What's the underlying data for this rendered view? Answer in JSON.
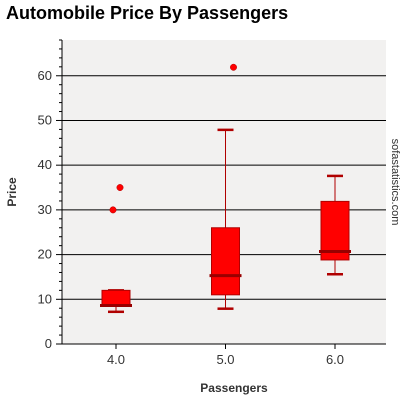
{
  "chart_data": {
    "type": "box",
    "title": "Automobile Price By Passengers",
    "xlabel": "Passengers",
    "ylabel": "Price",
    "watermark": "sofastatistics.com",
    "categories": [
      "4.0",
      "5.0",
      "6.0"
    ],
    "ylim": [
      0,
      68
    ],
    "yticks": [
      0,
      10,
      20,
      30,
      40,
      50,
      60
    ],
    "grid": true,
    "boxes": [
      {
        "category": "4.0",
        "whisker_low": 7.2,
        "q1": 8.5,
        "median": 8.6,
        "q3": 12.0,
        "whisker_high": 12.0,
        "outliers": [
          30.0,
          35.0
        ]
      },
      {
        "category": "5.0",
        "whisker_low": 7.9,
        "q1": 11.0,
        "median": 15.3,
        "q3": 26.0,
        "whisker_high": 47.9,
        "outliers": [
          61.9
        ]
      },
      {
        "category": "6.0",
        "whisker_low": 15.6,
        "q1": 18.8,
        "median": 20.7,
        "q3": 31.9,
        "whisker_high": 37.6,
        "outliers": []
      }
    ],
    "colors": {
      "box_fill": "#ff0000",
      "box_stroke": "#b00000",
      "median": "#990000",
      "plot_bg": "#f2f1f0",
      "grid": "#000000",
      "axis": "#000000"
    }
  }
}
